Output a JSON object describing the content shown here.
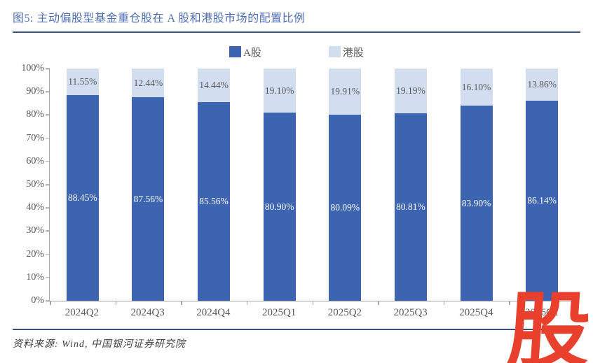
{
  "figure": {
    "title": "图5:  主动偏股型基金重仓股在 A 股和港股市场的配置比例",
    "source": "资料来源:  Wind,  中国银河证券研究院",
    "watermark": "股"
  },
  "colors": {
    "a_share": "#3c64b1",
    "hk_share": "#d2def0",
    "a_share_label": "#ffffff",
    "hk_share_label": "#595959",
    "axis": "#a6a6a6",
    "title_blue": "#4f6eb4",
    "rule_navy": "#33527e",
    "watermark_red": "#e8402c"
  },
  "chart_data": {
    "type": "bar",
    "stacked": true,
    "title": "图5: 主动偏股型基金重仓股在 A 股和港股市场的配置比例",
    "categories": [
      "2024Q2",
      "2024Q3",
      "2024Q4",
      "2025Q1",
      "2025Q2",
      "2025Q3",
      "2025Q4",
      "2026Q1"
    ],
    "series": [
      {
        "name": "A股",
        "values": [
          88.45,
          87.56,
          85.56,
          80.9,
          80.09,
          80.81,
          83.9,
          86.14
        ]
      },
      {
        "name": "港股",
        "values": [
          11.55,
          12.44,
          14.44,
          19.1,
          19.91,
          19.19,
          16.1,
          13.86
        ]
      }
    ],
    "y_ticks": [
      "0%",
      "10%",
      "20%",
      "30%",
      "40%",
      "50%",
      "60%",
      "70%",
      "80%",
      "90%",
      "100%"
    ],
    "ylim": [
      0,
      100
    ],
    "value_format": "0.00%",
    "data_labels": true,
    "legend_position": "top",
    "grid": false
  }
}
